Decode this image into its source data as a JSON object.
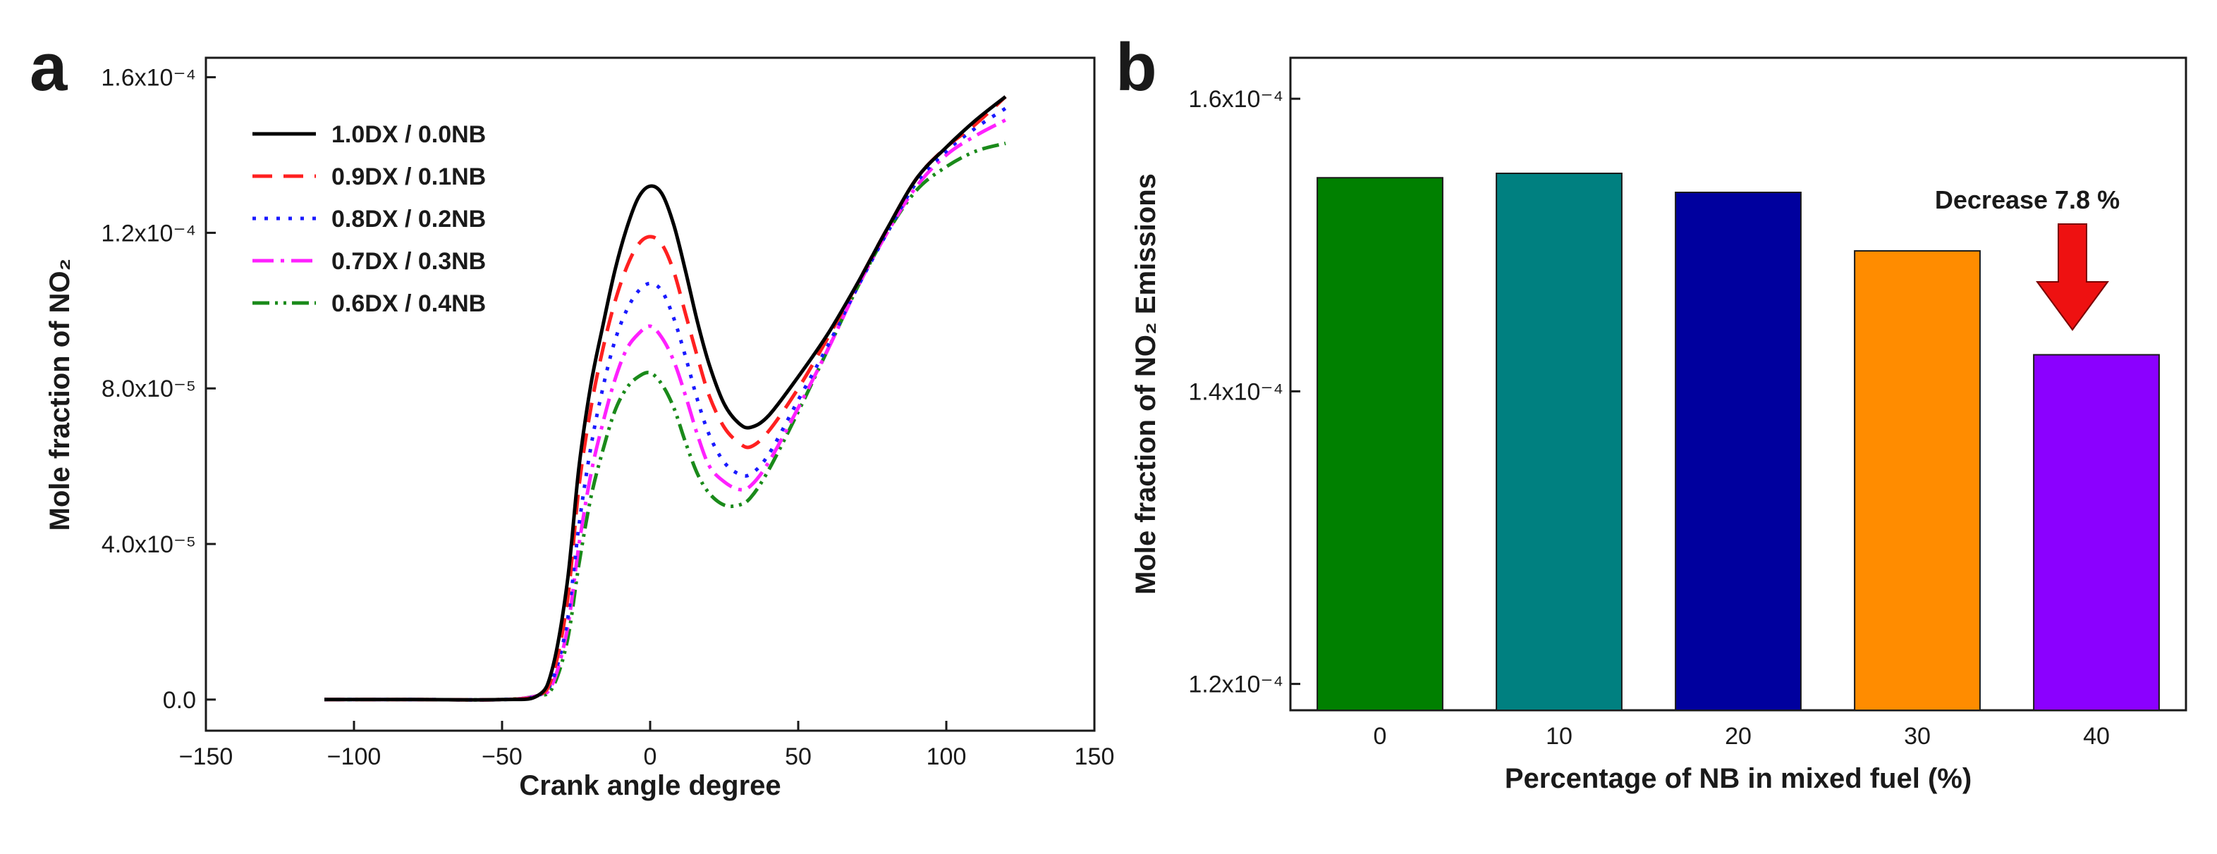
{
  "chart_data": [
    {
      "type": "line",
      "panel": "a",
      "xlabel": "Crank angle degree",
      "ylabel": "Mole fraction of NO₂",
      "xlim": [
        -150,
        150
      ],
      "ylim": [
        -8e-06,
        0.000165
      ],
      "xticks": [
        -150,
        -100,
        -50,
        0,
        50,
        100,
        150
      ],
      "xtick_labels": [
        "−150",
        "−100",
        "−50",
        "0",
        "50",
        "100",
        "150"
      ],
      "yticks": [
        0,
        4e-05,
        8e-05,
        0.00012,
        0.00016
      ],
      "ytick_labels": [
        "0.0",
        "4.0x10⁻⁵",
        "8.0x10⁻⁵",
        "1.2x10⁻⁴",
        "1.6x10⁻⁴"
      ],
      "legend_position": "top-left",
      "x": [
        -110,
        -80,
        -50,
        -38,
        -33,
        -28,
        -24,
        -20,
        -16,
        -12,
        -8,
        -4,
        0,
        4,
        8,
        12,
        16,
        20,
        25,
        30,
        34,
        40,
        50,
        60,
        70,
        80,
        90,
        100,
        110,
        120
      ],
      "series": [
        {
          "name": "1.0DX / 0.0NB",
          "color": "#000000",
          "dash": "none",
          "values": [
            0,
            0,
            0,
            1e-06,
            8e-06,
            3e-05,
            6e-05,
            8.1e-05,
            9.6e-05,
            0.00011,
            0.000121,
            0.000129,
            0.000132,
            0.00013,
            0.000122,
            0.00011,
            9.7e-05,
            8.6e-05,
            7.6e-05,
            7.1e-05,
            7e-05,
            7.3e-05,
            8.3e-05,
            9.4e-05,
            0.000107,
            0.000121,
            0.000134,
            0.000142,
            0.000149,
            0.000155
          ]
        },
        {
          "name": "0.9DX / 0.1NB",
          "color": "#ff2020",
          "dash": "28,16",
          "values": [
            0,
            0,
            0,
            1e-06,
            6e-06,
            2.5e-05,
            5.5e-05,
            7.5e-05,
            9e-05,
            0.000102,
            0.000111,
            0.000117,
            0.000119,
            0.000117,
            0.00011,
            9.9e-05,
            8.8e-05,
            7.8e-05,
            7e-05,
            6.6e-05,
            6.5e-05,
            6.9e-05,
            8e-05,
            9.3e-05,
            0.000107,
            0.000121,
            0.000134,
            0.000142,
            0.000148,
            0.000155
          ]
        },
        {
          "name": "0.8DX / 0.2NB",
          "color": "#1a1aff",
          "dash": "5,12",
          "values": [
            0,
            0,
            0,
            1e-06,
            5e-06,
            2e-05,
            4.5e-05,
            6.5e-05,
            8e-05,
            9.2e-05,
            0.0001,
            0.000105,
            0.000107,
            0.000105,
            9.8e-05,
            8.8e-05,
            7.7e-05,
            6.8e-05,
            6.1e-05,
            5.8e-05,
            5.8e-05,
            6.3e-05,
            7.7e-05,
            9.1e-05,
            0.000106,
            0.00012,
            0.000133,
            0.000141,
            0.000147,
            0.000152
          ]
        },
        {
          "name": "0.7DX / 0.3NB",
          "color": "#ff20ff",
          "dash": "30,10,5,10",
          "values": [
            0,
            0,
            0,
            1e-06,
            4e-06,
            1.8e-05,
            4e-05,
            5.8e-05,
            7.1e-05,
            8.2e-05,
            9e-05,
            9.4e-05,
            9.6e-05,
            9.3e-05,
            8.7e-05,
            7.8e-05,
            6.8e-05,
            6e-05,
            5.6e-05,
            5.4e-05,
            5.5e-05,
            6.1e-05,
            7.5e-05,
            9e-05,
            0.000106,
            0.00012,
            0.000132,
            0.00014,
            0.000145,
            0.000149
          ]
        },
        {
          "name": "0.6DX / 0.4NB",
          "color": "#1a8a1a",
          "dash": "24,8,4,8,4,8",
          "values": [
            0,
            0,
            0,
            1e-06,
            3e-06,
            1.5e-05,
            3.5e-05,
            5.2e-05,
            6.4e-05,
            7.4e-05,
            8e-05,
            8.3e-05,
            8.4e-05,
            8.1e-05,
            7.5e-05,
            6.6e-05,
            5.8e-05,
            5.3e-05,
            5e-05,
            5e-05,
            5.2e-05,
            5.9e-05,
            7.4e-05,
            9e-05,
            0.000106,
            0.00012,
            0.000131,
            0.000137,
            0.000141,
            0.000143
          ]
        }
      ]
    },
    {
      "type": "bar",
      "panel": "b",
      "xlabel": "Percentage of NB in mixed fuel (%)",
      "ylabel": "Mole fraction of NO₂ Emissions",
      "ylim": [
        0.0001182,
        0.0001628
      ],
      "yticks": [
        0.00012,
        0.00014,
        0.00016
      ],
      "ytick_labels": [
        "1.2x10⁻⁴",
        "1.4x10⁻⁴",
        "1.6x10⁻⁴"
      ],
      "categories": [
        "0",
        "10",
        "20",
        "30",
        "40"
      ],
      "values": [
        0.0001546,
        0.0001549,
        0.0001536,
        0.0001496,
        0.0001425
      ],
      "colors": [
        "#008000",
        "#008080",
        "#00009e",
        "#ff8c00",
        "#8b00ff"
      ],
      "annotation": "Decrease 7.8 %",
      "annotation_color": "#ee1111"
    }
  ]
}
